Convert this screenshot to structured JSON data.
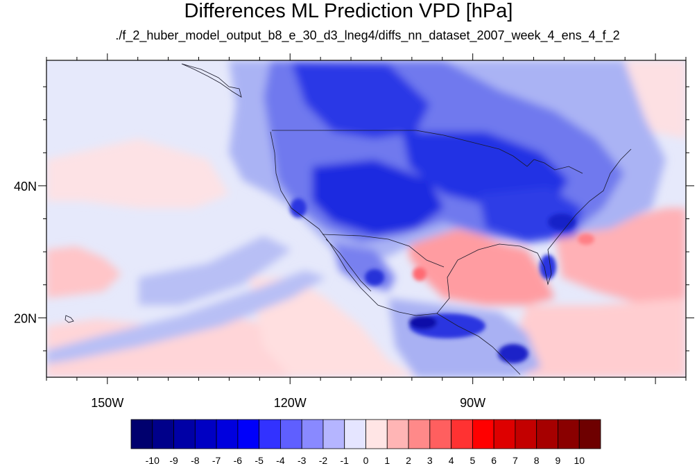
{
  "title": "Differences ML Prediction VPD [hPa]",
  "subtitle": "./f_2_huber_model_output_b8_e_30_d3_lneg4/diffs_nn_dataset_2007_week_4_ens_4_f_2",
  "axes": {
    "lon_ticks": [
      {
        "value": -150,
        "label": "150W"
      },
      {
        "value": -120,
        "label": "120W"
      },
      {
        "value": -90,
        "label": "90W"
      }
    ],
    "lat_ticks": [
      {
        "value": 40,
        "label": "40N"
      },
      {
        "value": 20,
        "label": "20N"
      }
    ],
    "lon_range": [
      -160,
      -55
    ],
    "lat_range": [
      11,
      59
    ]
  },
  "colorbar": {
    "labels": [
      "-10",
      "-9",
      "-8",
      "-7",
      "-6",
      "-5",
      "-4",
      "-3",
      "-2",
      "-1",
      "0",
      "1",
      "2",
      "3",
      "4",
      "5",
      "6",
      "7",
      "8",
      "9",
      "10"
    ],
    "colors": [
      "#00006e",
      "#00008a",
      "#0000a6",
      "#0000c3",
      "#0000de",
      "#0000fa",
      "#3232ff",
      "#5f5fff",
      "#8989ff",
      "#b5b5ff",
      "#e5e5ff",
      "#ffe5e5",
      "#ffb5b5",
      "#ff8989",
      "#ff5f5f",
      "#ff3232",
      "#ff0000",
      "#de0000",
      "#c30000",
      "#a60000",
      "#8a0000",
      "#6e0000"
    ]
  },
  "colors": {
    "background": "#e6e9fb",
    "frame": "#000000"
  }
}
